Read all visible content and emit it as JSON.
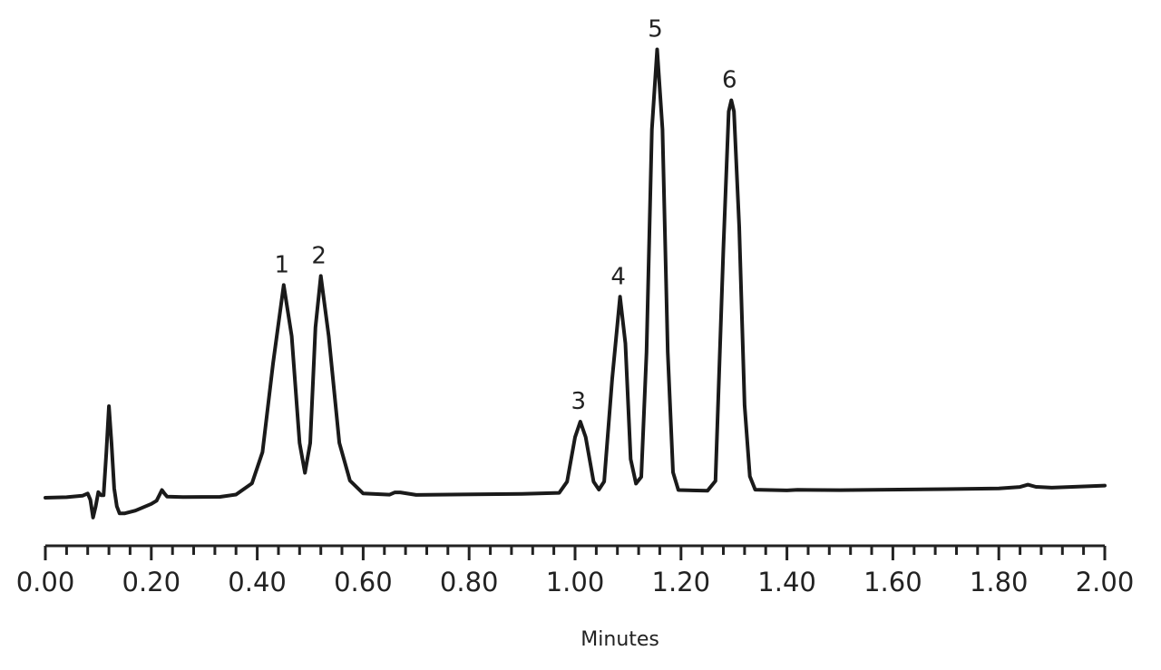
{
  "chart_data": {
    "type": "line",
    "title": "",
    "xlabel": "Minutes",
    "ylabel": "",
    "xlim": [
      0,
      2.0
    ],
    "ylim": [
      0,
      100
    ],
    "grid": false,
    "x_ticks": [
      "0.00",
      "0.20",
      "0.40",
      "0.60",
      "0.80",
      "1.00",
      "1.20",
      "1.40",
      "1.60",
      "1.80",
      "2.00"
    ],
    "x_tick_values": [
      0,
      0.2,
      0.4,
      0.6,
      0.8,
      1.0,
      1.2,
      1.4,
      1.6,
      1.8,
      2.0
    ],
    "peaks": [
      {
        "label": "1",
        "x": 0.45,
        "y": 47.5
      },
      {
        "label": "2",
        "x": 0.52,
        "y": 49.5
      },
      {
        "label": "3",
        "x": 1.01,
        "y": 16.5
      },
      {
        "label": "4",
        "x": 1.085,
        "y": 44.5
      },
      {
        "label": "5",
        "x": 1.155,
        "y": 100
      },
      {
        "label": "6",
        "x": 1.295,
        "y": 88.5
      }
    ],
    "series": [
      {
        "values": [
          [
            0.0,
            0.0
          ],
          [
            0.04,
            0.1
          ],
          [
            0.07,
            0.4
          ],
          [
            0.08,
            0.9
          ],
          [
            0.085,
            -0.5
          ],
          [
            0.09,
            -4.5
          ],
          [
            0.095,
            -2.0
          ],
          [
            0.1,
            1.2
          ],
          [
            0.105,
            0.5
          ],
          [
            0.11,
            0.5
          ],
          [
            0.115,
            10.0
          ],
          [
            0.12,
            20.5
          ],
          [
            0.125,
            12.0
          ],
          [
            0.13,
            2.0
          ],
          [
            0.135,
            -2.0
          ],
          [
            0.14,
            -3.6
          ],
          [
            0.15,
            -3.6
          ],
          [
            0.17,
            -3.0
          ],
          [
            0.2,
            -1.5
          ],
          [
            0.21,
            -0.8
          ],
          [
            0.215,
            0.4
          ],
          [
            0.22,
            1.6
          ],
          [
            0.225,
            0.8
          ],
          [
            0.23,
            0.1
          ],
          [
            0.26,
            0.0
          ],
          [
            0.33,
            0.0
          ],
          [
            0.36,
            0.5
          ],
          [
            0.39,
            3.0
          ],
          [
            0.41,
            10.0
          ],
          [
            0.43,
            30.0
          ],
          [
            0.45,
            47.5
          ],
          [
            0.465,
            36.0
          ],
          [
            0.48,
            12.0
          ],
          [
            0.49,
            5.3
          ],
          [
            0.5,
            12.0
          ],
          [
            0.51,
            38.0
          ],
          [
            0.52,
            49.5
          ],
          [
            0.535,
            36.0
          ],
          [
            0.555,
            12.0
          ],
          [
            0.575,
            3.5
          ],
          [
            0.6,
            0.6
          ],
          [
            0.65,
            0.3
          ],
          [
            0.66,
            0.8
          ],
          [
            0.67,
            0.8
          ],
          [
            0.7,
            0.2
          ],
          [
            0.9,
            0.3
          ],
          [
            0.97,
            0.5
          ],
          [
            0.985,
            3.0
          ],
          [
            1.0,
            13.0
          ],
          [
            1.01,
            16.5
          ],
          [
            1.02,
            13.0
          ],
          [
            1.035,
            3.0
          ],
          [
            1.045,
            1.2
          ],
          [
            1.055,
            3.0
          ],
          [
            1.07,
            26.0
          ],
          [
            1.085,
            44.5
          ],
          [
            1.095,
            34.0
          ],
          [
            1.105,
            8.0
          ],
          [
            1.115,
            2.5
          ],
          [
            1.125,
            4.0
          ],
          [
            1.135,
            32.0
          ],
          [
            1.145,
            82.0
          ],
          [
            1.155,
            100.0
          ],
          [
            1.165,
            82.0
          ],
          [
            1.175,
            32.0
          ],
          [
            1.185,
            5.0
          ],
          [
            1.195,
            1.0
          ],
          [
            1.25,
            0.8
          ],
          [
            1.265,
            3.0
          ],
          [
            1.28,
            55.0
          ],
          [
            1.29,
            86.0
          ],
          [
            1.295,
            88.5
          ],
          [
            1.3,
            86.0
          ],
          [
            1.31,
            60.0
          ],
          [
            1.32,
            20.0
          ],
          [
            1.33,
            4.0
          ],
          [
            1.34,
            1.0
          ],
          [
            1.4,
            0.8
          ],
          [
            1.42,
            0.9
          ],
          [
            1.5,
            0.8
          ],
          [
            1.7,
            0.9
          ],
          [
            1.8,
            1.0
          ],
          [
            1.84,
            1.3
          ],
          [
            1.855,
            1.8
          ],
          [
            1.87,
            1.3
          ],
          [
            1.9,
            1.1
          ],
          [
            2.0,
            1.5
          ]
        ]
      }
    ]
  }
}
